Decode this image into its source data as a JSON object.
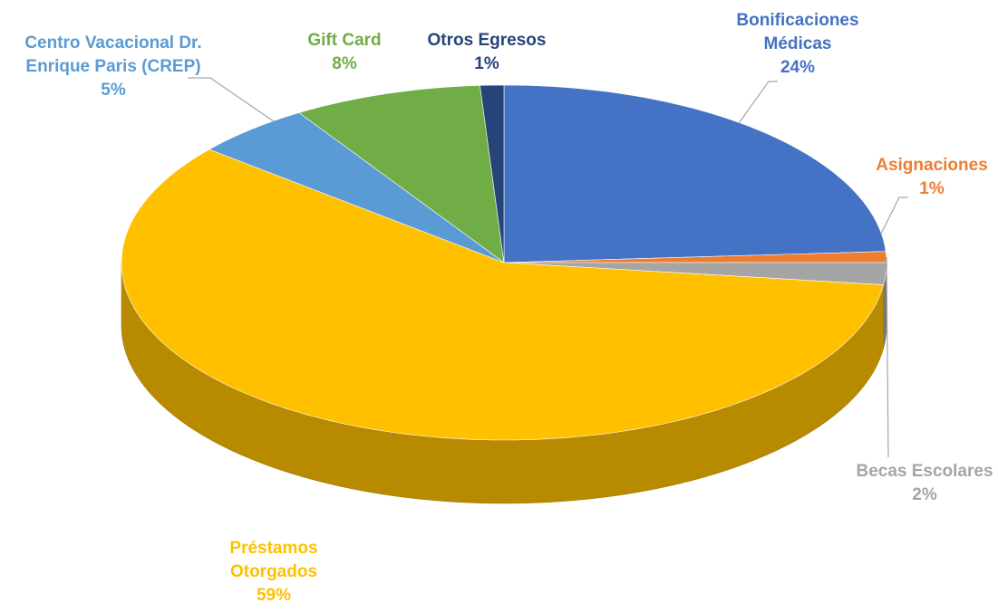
{
  "chart_data": {
    "type": "pie",
    "categories": [
      "Bonificaciones Médicas",
      "Asignaciones",
      "Becas Escolares",
      "Préstamos Otorgados",
      "Centro Vacacional Dr. Enrique Paris (CREP)",
      "Gift Card",
      "Otros Egresos"
    ],
    "values": [
      24,
      1,
      2,
      59,
      5,
      8,
      1
    ],
    "value_labels": [
      "24%",
      "1%",
      "2%",
      "59%",
      "5%",
      "8%",
      "1%"
    ],
    "colors": [
      "#4472c4",
      "#ed7d31",
      "#a5a5a5",
      "#ffc000",
      "#5b9bd5",
      "#70ad47",
      "#264478"
    ]
  }
}
